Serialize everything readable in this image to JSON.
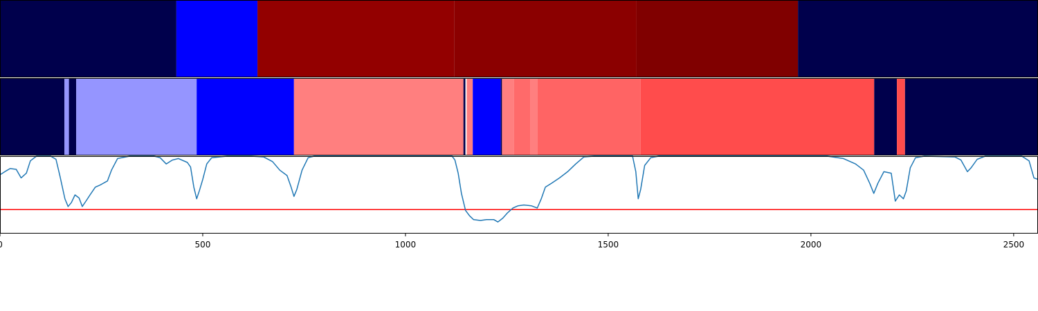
{
  "chart_data": [
    {
      "type": "heatmap",
      "x_range": [
        0,
        2560
      ],
      "segments": [
        {
          "start": 0,
          "end": 435,
          "color": "#00004c"
        },
        {
          "start": 435,
          "end": 635,
          "color": "#0000ff"
        },
        {
          "start": 635,
          "end": 1120,
          "color": "#930000"
        },
        {
          "start": 1120,
          "end": 1570,
          "color": "#8b0000"
        },
        {
          "start": 1570,
          "end": 1968,
          "color": "#800000"
        },
        {
          "start": 1968,
          "end": 2560,
          "color": "#00004c"
        }
      ]
    },
    {
      "type": "heatmap",
      "x_range": [
        0,
        2560
      ],
      "segments": [
        {
          "start": 0,
          "end": 159,
          "color": "#00004c"
        },
        {
          "start": 159,
          "end": 170,
          "color": "#9595ff"
        },
        {
          "start": 170,
          "end": 188,
          "color": "#00004c"
        },
        {
          "start": 188,
          "end": 485,
          "color": "#9595ff"
        },
        {
          "start": 485,
          "end": 725,
          "color": "#0000ff"
        },
        {
          "start": 725,
          "end": 1143,
          "color": "#ff7f7f"
        },
        {
          "start": 1143,
          "end": 1148,
          "color": "#00004c"
        },
        {
          "start": 1148,
          "end": 1151,
          "color": "#ffffff"
        },
        {
          "start": 1151,
          "end": 1166,
          "color": "#ff7f7f"
        },
        {
          "start": 1166,
          "end": 1235,
          "color": "#0000ff"
        },
        {
          "start": 1235,
          "end": 1238,
          "color": "#00004c"
        },
        {
          "start": 1238,
          "end": 1268,
          "color": "#ff7f7f"
        },
        {
          "start": 1268,
          "end": 1308,
          "color": "#ff6a6a"
        },
        {
          "start": 1308,
          "end": 1326,
          "color": "#ff7f7f"
        },
        {
          "start": 1326,
          "end": 1580,
          "color": "#ff6464"
        },
        {
          "start": 1580,
          "end": 2156,
          "color": "#ff4c4c"
        },
        {
          "start": 2156,
          "end": 2212,
          "color": "#00004c"
        },
        {
          "start": 2212,
          "end": 2232,
          "color": "#ff4c4c"
        },
        {
          "start": 2232,
          "end": 2560,
          "color": "#00004c"
        }
      ]
    },
    {
      "type": "line",
      "xlim": [
        0,
        2560
      ],
      "ylim": [
        0,
        1
      ],
      "xticks": [
        0,
        500,
        1000,
        1500,
        2000,
        2500
      ],
      "series_color": "#1f77b4",
      "threshold": {
        "y": 0.31,
        "color": "#ff0000"
      },
      "points": [
        [
          0,
          0.76
        ],
        [
          15,
          0.81
        ],
        [
          25,
          0.84
        ],
        [
          40,
          0.83
        ],
        [
          52,
          0.72
        ],
        [
          65,
          0.78
        ],
        [
          75,
          0.94
        ],
        [
          90,
          1.0
        ],
        [
          125,
          1.0
        ],
        [
          138,
          0.96
        ],
        [
          148,
          0.74
        ],
        [
          160,
          0.45
        ],
        [
          168,
          0.35
        ],
        [
          176,
          0.4
        ],
        [
          185,
          0.5
        ],
        [
          195,
          0.46
        ],
        [
          203,
          0.35
        ],
        [
          212,
          0.42
        ],
        [
          222,
          0.5
        ],
        [
          235,
          0.6
        ],
        [
          248,
          0.63
        ],
        [
          265,
          0.68
        ],
        [
          275,
          0.82
        ],
        [
          290,
          0.97
        ],
        [
          320,
          1.0
        ],
        [
          380,
          1.0
        ],
        [
          395,
          0.98
        ],
        [
          410,
          0.9
        ],
        [
          425,
          0.95
        ],
        [
          440,
          0.97
        ],
        [
          462,
          0.92
        ],
        [
          470,
          0.86
        ],
        [
          478,
          0.6
        ],
        [
          485,
          0.45
        ],
        [
          492,
          0.56
        ],
        [
          500,
          0.7
        ],
        [
          510,
          0.9
        ],
        [
          522,
          0.98
        ],
        [
          560,
          1.0
        ],
        [
          620,
          1.0
        ],
        [
          650,
          0.99
        ],
        [
          672,
          0.93
        ],
        [
          690,
          0.82
        ],
        [
          708,
          0.75
        ],
        [
          718,
          0.6
        ],
        [
          725,
          0.48
        ],
        [
          732,
          0.57
        ],
        [
          745,
          0.82
        ],
        [
          760,
          0.98
        ],
        [
          775,
          1.0
        ],
        [
          1115,
          1.0
        ],
        [
          1122,
          0.95
        ],
        [
          1130,
          0.78
        ],
        [
          1138,
          0.52
        ],
        [
          1148,
          0.3
        ],
        [
          1158,
          0.23
        ],
        [
          1168,
          0.18
        ],
        [
          1185,
          0.17
        ],
        [
          1200,
          0.18
        ],
        [
          1218,
          0.18
        ],
        [
          1228,
          0.15
        ],
        [
          1240,
          0.2
        ],
        [
          1252,
          0.27
        ],
        [
          1265,
          0.33
        ],
        [
          1278,
          0.36
        ],
        [
          1292,
          0.37
        ],
        [
          1310,
          0.36
        ],
        [
          1325,
          0.33
        ],
        [
          1335,
          0.45
        ],
        [
          1345,
          0.6
        ],
        [
          1360,
          0.65
        ],
        [
          1380,
          0.72
        ],
        [
          1400,
          0.8
        ],
        [
          1420,
          0.9
        ],
        [
          1440,
          0.99
        ],
        [
          1465,
          1.0
        ],
        [
          1560,
          1.0
        ],
        [
          1568,
          0.8
        ],
        [
          1574,
          0.45
        ],
        [
          1580,
          0.57
        ],
        [
          1590,
          0.88
        ],
        [
          1605,
          0.98
        ],
        [
          1625,
          1.0
        ],
        [
          2040,
          1.0
        ],
        [
          2080,
          0.97
        ],
        [
          2110,
          0.9
        ],
        [
          2130,
          0.82
        ],
        [
          2145,
          0.65
        ],
        [
          2155,
          0.52
        ],
        [
          2165,
          0.65
        ],
        [
          2180,
          0.8
        ],
        [
          2198,
          0.78
        ],
        [
          2208,
          0.42
        ],
        [
          2218,
          0.5
        ],
        [
          2228,
          0.45
        ],
        [
          2235,
          0.55
        ],
        [
          2245,
          0.85
        ],
        [
          2258,
          0.98
        ],
        [
          2280,
          1.0
        ],
        [
          2355,
          0.99
        ],
        [
          2370,
          0.95
        ],
        [
          2386,
          0.8
        ],
        [
          2395,
          0.85
        ],
        [
          2410,
          0.96
        ],
        [
          2430,
          1.0
        ],
        [
          2520,
          1.0
        ],
        [
          2538,
          0.94
        ],
        [
          2550,
          0.72
        ],
        [
          2560,
          0.7
        ]
      ]
    }
  ],
  "xaxis": {
    "tick_labels": [
      "0",
      "500",
      "1000",
      "1500",
      "2000",
      "2500"
    ]
  }
}
